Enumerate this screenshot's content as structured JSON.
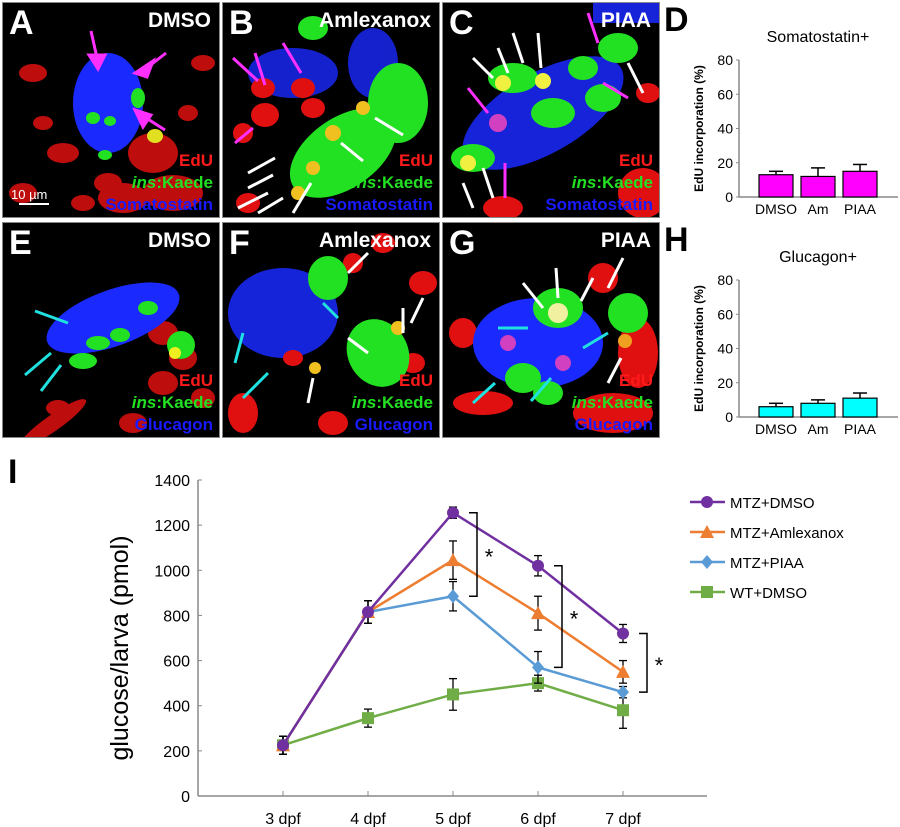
{
  "panels": {
    "A": {
      "label": "A",
      "treatment": "DMSO",
      "stain": "Somatostatin",
      "scale": "10 µm"
    },
    "B": {
      "label": "B",
      "treatment": "Amlexanox",
      "stain": "Somatostatin"
    },
    "C": {
      "label": "C",
      "treatment": "PIAA",
      "stain": "Somatostatin"
    },
    "E": {
      "label": "E",
      "treatment": "DMSO",
      "stain": "Glucagon"
    },
    "F": {
      "label": "F",
      "treatment": "Amlexanox",
      "stain": "Glucagon"
    },
    "G": {
      "label": "G",
      "treatment": "PIAA",
      "stain": "Glucagon"
    }
  },
  "stain_legend": {
    "edu": "EdU",
    "ins_italic": "ins",
    "kaede": ":Kaede"
  },
  "colors": {
    "somatostatin_bar": "#ff00ff",
    "glucagon_bar": "#00ffff",
    "mtz_dmso": "#7030a0",
    "mtz_amlexanox": "#ed7d31",
    "mtz_piaa": "#5b9bd5",
    "wt_dmso": "#70ad47",
    "axis": "#888888"
  },
  "chart_data": [
    {
      "id": "D",
      "panel_label": "D",
      "type": "bar",
      "title": "Somatostatin+",
      "ylabel": "EdU incorporation (%)",
      "xlabel": "",
      "categories": [
        "DMSO",
        "Am",
        "PIAA"
      ],
      "values": [
        13,
        12,
        15
      ],
      "errors": [
        2,
        5,
        4
      ],
      "ylim": [
        0,
        80
      ],
      "yticks": [
        0,
        20,
        40,
        60,
        80
      ],
      "color": "#ff00ff"
    },
    {
      "id": "H",
      "panel_label": "H",
      "type": "bar",
      "title": "Glucagon+",
      "ylabel": "EdU incorporation (%)",
      "xlabel": "",
      "categories": [
        "DMSO",
        "Am",
        "PIAA"
      ],
      "values": [
        6,
        8,
        11
      ],
      "errors": [
        2,
        2,
        3
      ],
      "ylim": [
        0,
        80
      ],
      "yticks": [
        0,
        20,
        40,
        60,
        80
      ],
      "color": "#00ffff"
    },
    {
      "id": "I",
      "panel_label": "I",
      "type": "line",
      "title": "",
      "xlabel": "",
      "ylabel": "glucose/larva (pmol)",
      "categories": [
        "3 dpf",
        "4 dpf",
        "5 dpf",
        "6 dpf",
        "7 dpf"
      ],
      "ylim": [
        0,
        1400
      ],
      "yticks": [
        0,
        200,
        400,
        600,
        800,
        1000,
        1200,
        1400
      ],
      "legend_position": "top-right",
      "series": [
        {
          "name": "MTZ+DMSO",
          "marker": "circle",
          "color": "#7030a0",
          "values": [
            225,
            815,
            1255,
            1020,
            720
          ],
          "errors": [
            40,
            50,
            25,
            45,
            40
          ]
        },
        {
          "name": "MTZ+Amlexanox",
          "marker": "triangle",
          "color": "#ed7d31",
          "values": [
            225,
            815,
            1045,
            810,
            550
          ],
          "errors": [
            40,
            50,
            85,
            75,
            50
          ]
        },
        {
          "name": "MTZ+PIAA",
          "marker": "diamond",
          "color": "#5b9bd5",
          "values": [
            225,
            815,
            885,
            570,
            460
          ],
          "errors": [
            40,
            50,
            65,
            70,
            25
          ]
        },
        {
          "name": "WT+DMSO",
          "marker": "square",
          "color": "#70ad47",
          "values": [
            225,
            345,
            450,
            500,
            380
          ],
          "errors": [
            40,
            40,
            70,
            35,
            80
          ]
        }
      ],
      "significance": [
        {
          "x": "5 dpf",
          "from": "MTZ+DMSO",
          "to": "MTZ+PIAA",
          "label": "*"
        },
        {
          "x": "6 dpf",
          "from": "MTZ+DMSO",
          "to": "MTZ+PIAA",
          "label": "*"
        },
        {
          "x": "7 dpf",
          "from": "MTZ+DMSO",
          "to": "MTZ+PIAA",
          "label": "*"
        }
      ]
    }
  ]
}
